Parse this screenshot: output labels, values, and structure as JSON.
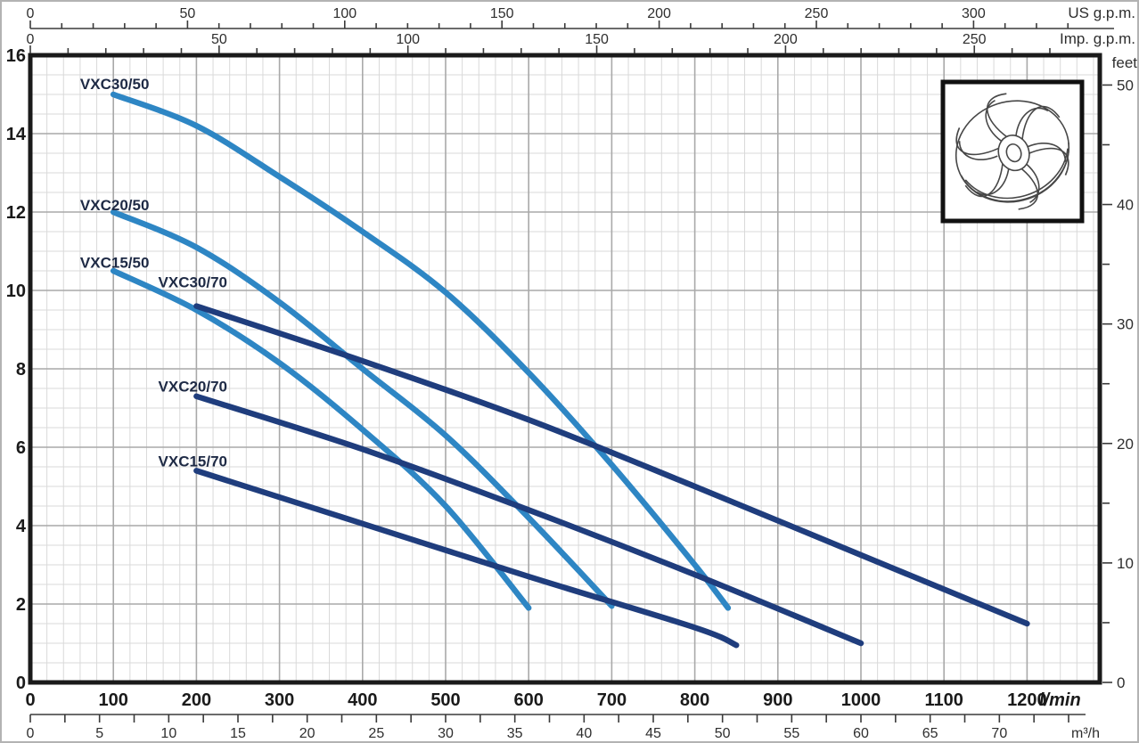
{
  "figure": {
    "background": "#ffffff",
    "border_color": "#b3b3b3"
  },
  "chart_data": {
    "type": "line",
    "title": "",
    "grid": {
      "on": true,
      "x_minor_step_lmin": 20,
      "x_major_step_lmin": 100,
      "y_minor_step_m": 0.5,
      "y_major_step_m": 2,
      "minor_color": "#d9d9d9",
      "major_color": "#a9a9a9"
    },
    "axes": {
      "left": {
        "unit": "m",
        "min": 0,
        "max": 16,
        "tick_labels": [
          0,
          2,
          4,
          6,
          8,
          10,
          12,
          14,
          16
        ]
      },
      "right": {
        "label": "feet",
        "tick_labels": [
          0,
          10,
          20,
          30,
          40,
          50
        ],
        "minor_step_ft": 5,
        "max_tick_ft": 50,
        "m_per_foot": 0.3048
      },
      "bottom": {
        "label": "l/min",
        "min": 0,
        "max": 1200,
        "tick_labels": [
          0,
          100,
          200,
          300,
          400,
          500,
          600,
          700,
          800,
          900,
          1000,
          1100,
          1200
        ]
      },
      "bottom2": {
        "label": "m³/h",
        "tick_labels": [
          0,
          5,
          10,
          15,
          20,
          25,
          30,
          35,
          40,
          45,
          50,
          55,
          60,
          65,
          70
        ],
        "minor_step": 2.5,
        "max_tick": 75,
        "lmin_per_unit": 16.6667
      },
      "top": {
        "label": "US g.p.m.",
        "tick_labels": [
          0,
          50,
          100,
          150,
          200,
          250,
          300
        ],
        "minor_step": 10,
        "max_tick": 330,
        "lmin_per_unit": 3.7854
      },
      "top2": {
        "label": "Imp. g.p.m.",
        "tick_labels": [
          0,
          50,
          100,
          150,
          200,
          250
        ],
        "minor_step": 10,
        "max_tick": 270,
        "lmin_per_unit": 4.5461
      }
    },
    "series": [
      {
        "name": "VXC30/50",
        "color": "#2e86c4",
        "label_pos": [
          60,
          15.14
        ],
        "points": [
          [
            100,
            15
          ],
          [
            200,
            14.2
          ],
          [
            300,
            12.9
          ],
          [
            400,
            11.5
          ],
          [
            500,
            9.95
          ],
          [
            600,
            7.9
          ],
          [
            700,
            5.55
          ],
          [
            800,
            3.0
          ],
          [
            840,
            1.9
          ]
        ]
      },
      {
        "name": "VXC20/50",
        "color": "#2e86c4",
        "label_pos": [
          60,
          12.05
        ],
        "points": [
          [
            100,
            12
          ],
          [
            200,
            11.1
          ],
          [
            300,
            9.7
          ],
          [
            400,
            8.0
          ],
          [
            500,
            6.3
          ],
          [
            600,
            4.2
          ],
          [
            700,
            1.95
          ]
        ]
      },
      {
        "name": "VXC15/50",
        "color": "#2e86c4",
        "label_pos": [
          60,
          10.58
        ],
        "points": [
          [
            100,
            10.5
          ],
          [
            200,
            9.5
          ],
          [
            300,
            8.15
          ],
          [
            400,
            6.45
          ],
          [
            500,
            4.5
          ],
          [
            600,
            1.9
          ]
        ]
      },
      {
        "name": "VXC30/70",
        "color": "#1f3d7d",
        "label_pos": [
          154,
          10.08
        ],
        "points": [
          [
            200,
            9.6
          ],
          [
            400,
            8.2
          ],
          [
            600,
            6.7
          ],
          [
            800,
            5.0
          ],
          [
            1000,
            3.25
          ],
          [
            1200,
            1.5
          ]
        ]
      },
      {
        "name": "VXC20/70",
        "color": "#1f3d7d",
        "label_pos": [
          154,
          7.42
        ],
        "points": [
          [
            200,
            7.3
          ],
          [
            400,
            5.95
          ],
          [
            600,
            4.4
          ],
          [
            800,
            2.75
          ],
          [
            1000,
            1.0
          ]
        ]
      },
      {
        "name": "VXC15/70",
        "color": "#1f3d7d",
        "label_pos": [
          154,
          5.51
        ],
        "points": [
          [
            200,
            5.4
          ],
          [
            400,
            4.05
          ],
          [
            600,
            2.7
          ],
          [
            800,
            1.4
          ],
          [
            850,
            0.95
          ]
        ]
      }
    ],
    "inset": {
      "name": "impeller-illustration",
      "description": "vortex impeller line drawing"
    },
    "styles": {
      "curve_width": 6.5,
      "plot_border_color": "#1a1a1a",
      "axis_color": "#3a3a3a",
      "big_label_color": "#1a1a1a",
      "small_label_color": "#2e2e2e",
      "curve_label_color": "#1e2a45"
    }
  }
}
